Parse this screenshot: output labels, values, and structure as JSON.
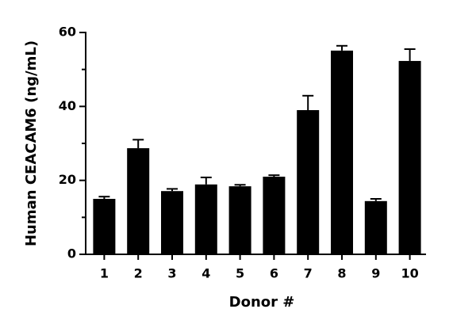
{
  "chart_data": {
    "type": "bar",
    "x_label": "Donor #",
    "y_label": "Human CEACAM6 (ng/mL)",
    "categories": [
      "1",
      "2",
      "3",
      "4",
      "5",
      "6",
      "7",
      "8",
      "9",
      "10"
    ],
    "values": [
      15.0,
      28.7,
      17.1,
      18.9,
      18.4,
      21.0,
      39.0,
      55.1,
      14.4,
      52.3
    ],
    "errors": [
      0.6,
      2.3,
      0.6,
      1.9,
      0.4,
      0.4,
      3.9,
      1.3,
      0.6,
      3.2
    ],
    "color": "#000000",
    "ylim": [
      0,
      60
    ],
    "yticks": [
      0,
      20,
      40,
      60
    ],
    "yminorticks": [
      10,
      30,
      50
    ]
  }
}
